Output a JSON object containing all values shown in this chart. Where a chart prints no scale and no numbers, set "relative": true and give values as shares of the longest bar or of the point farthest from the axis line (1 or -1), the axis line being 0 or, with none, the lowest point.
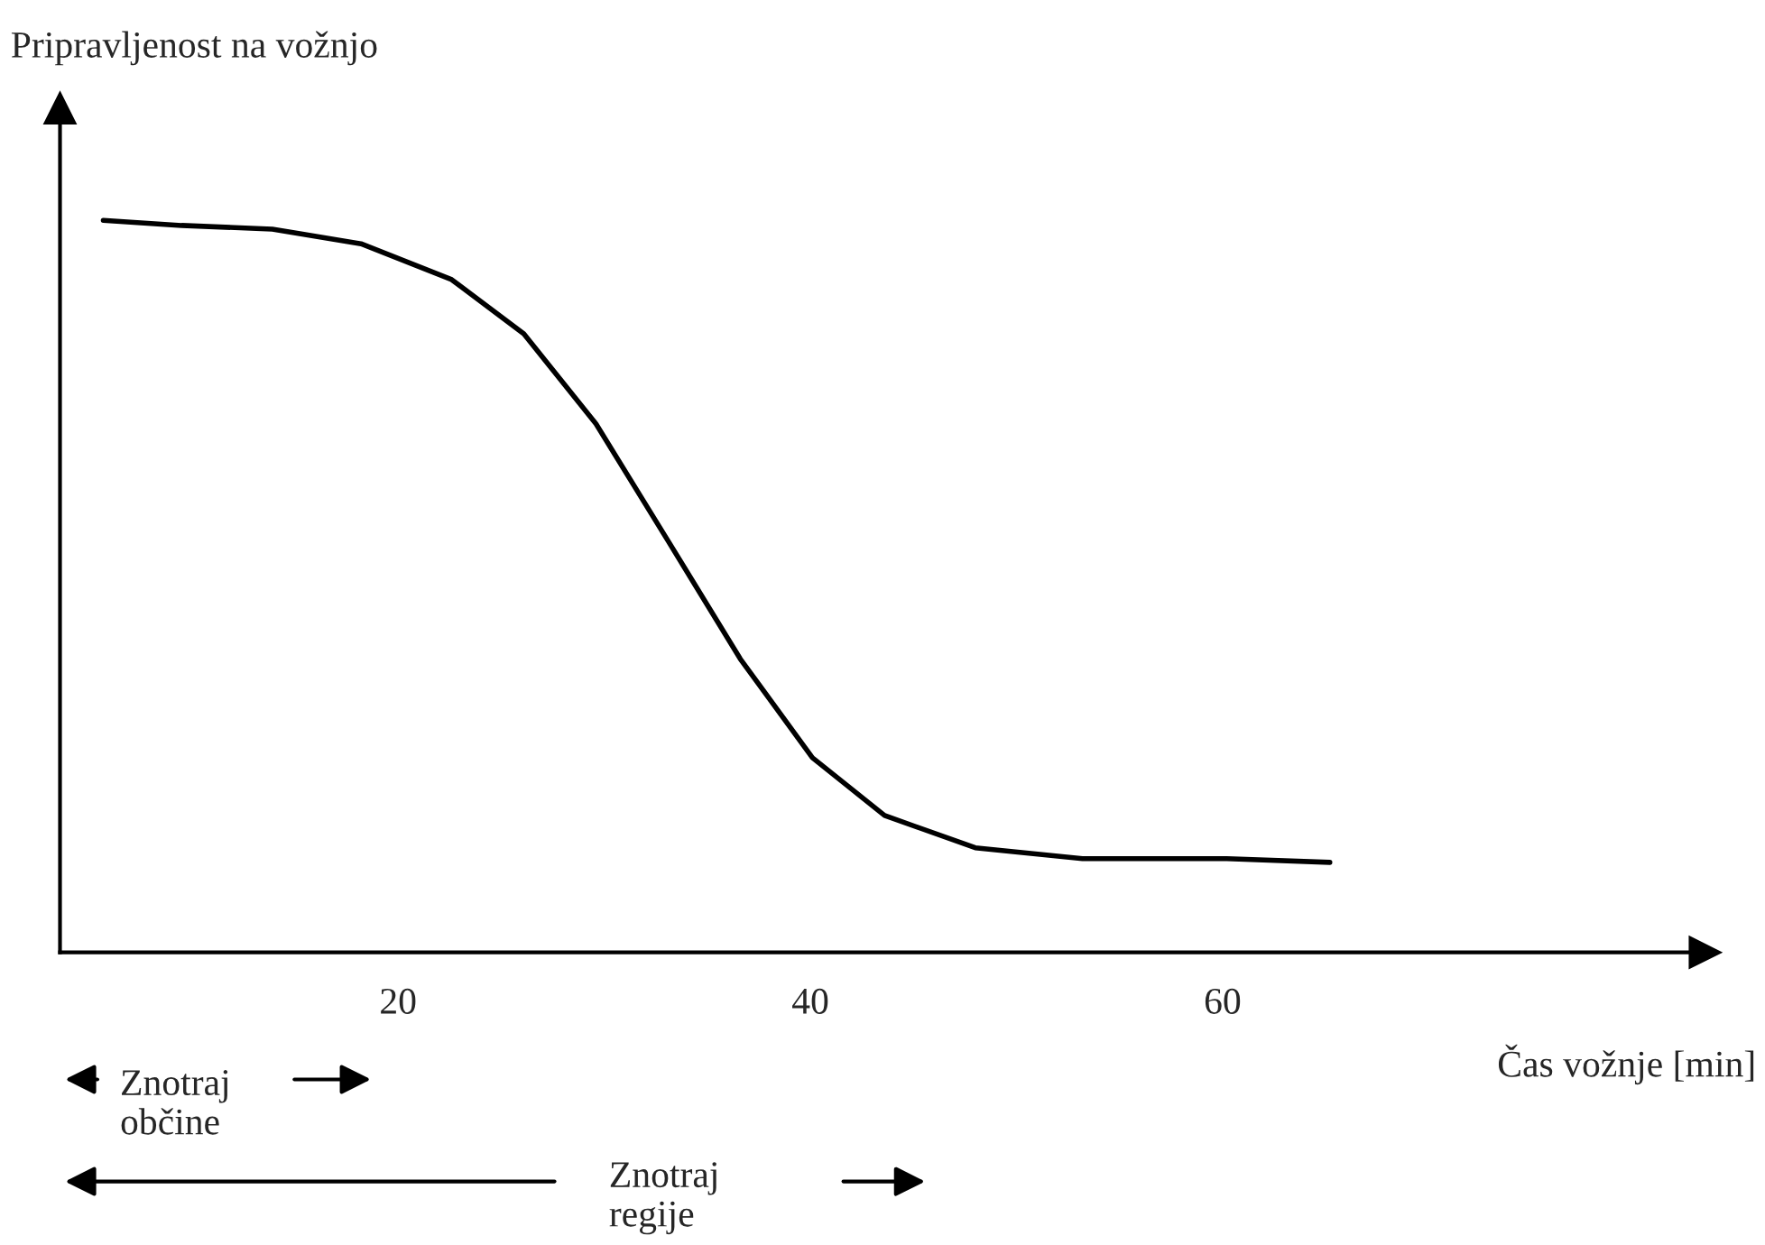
{
  "chart_data": {
    "type": "line",
    "relative": true,
    "xlabel": "Čas vožnje [min]",
    "ylabel": "Pripravljenost na vožnjo",
    "x": [
      5.7,
      9.5,
      13.9,
      18.2,
      22.6,
      26.1,
      29.6,
      33.1,
      36.6,
      40.1,
      43.6,
      48.0,
      53.2,
      60.2,
      65.2
    ],
    "series": [
      {
        "color": "#000000",
        "values": [
          1.0,
          0.993,
          0.988,
          0.968,
          0.919,
          0.845,
          0.722,
          0.562,
          0.401,
          0.266,
          0.187,
          0.143,
          0.128,
          0.128,
          0.123
        ]
      }
    ],
    "xlim": [
      3.6,
      83.4
    ],
    "xticks": [
      20,
      40,
      60
    ],
    "tick_labels": "x",
    "grid": false,
    "legend": false,
    "marker": "none",
    "line_style": "solid",
    "annotations": [
      "Znotraj\nobčine",
      "Znotraj\nregije"
    ]
  }
}
